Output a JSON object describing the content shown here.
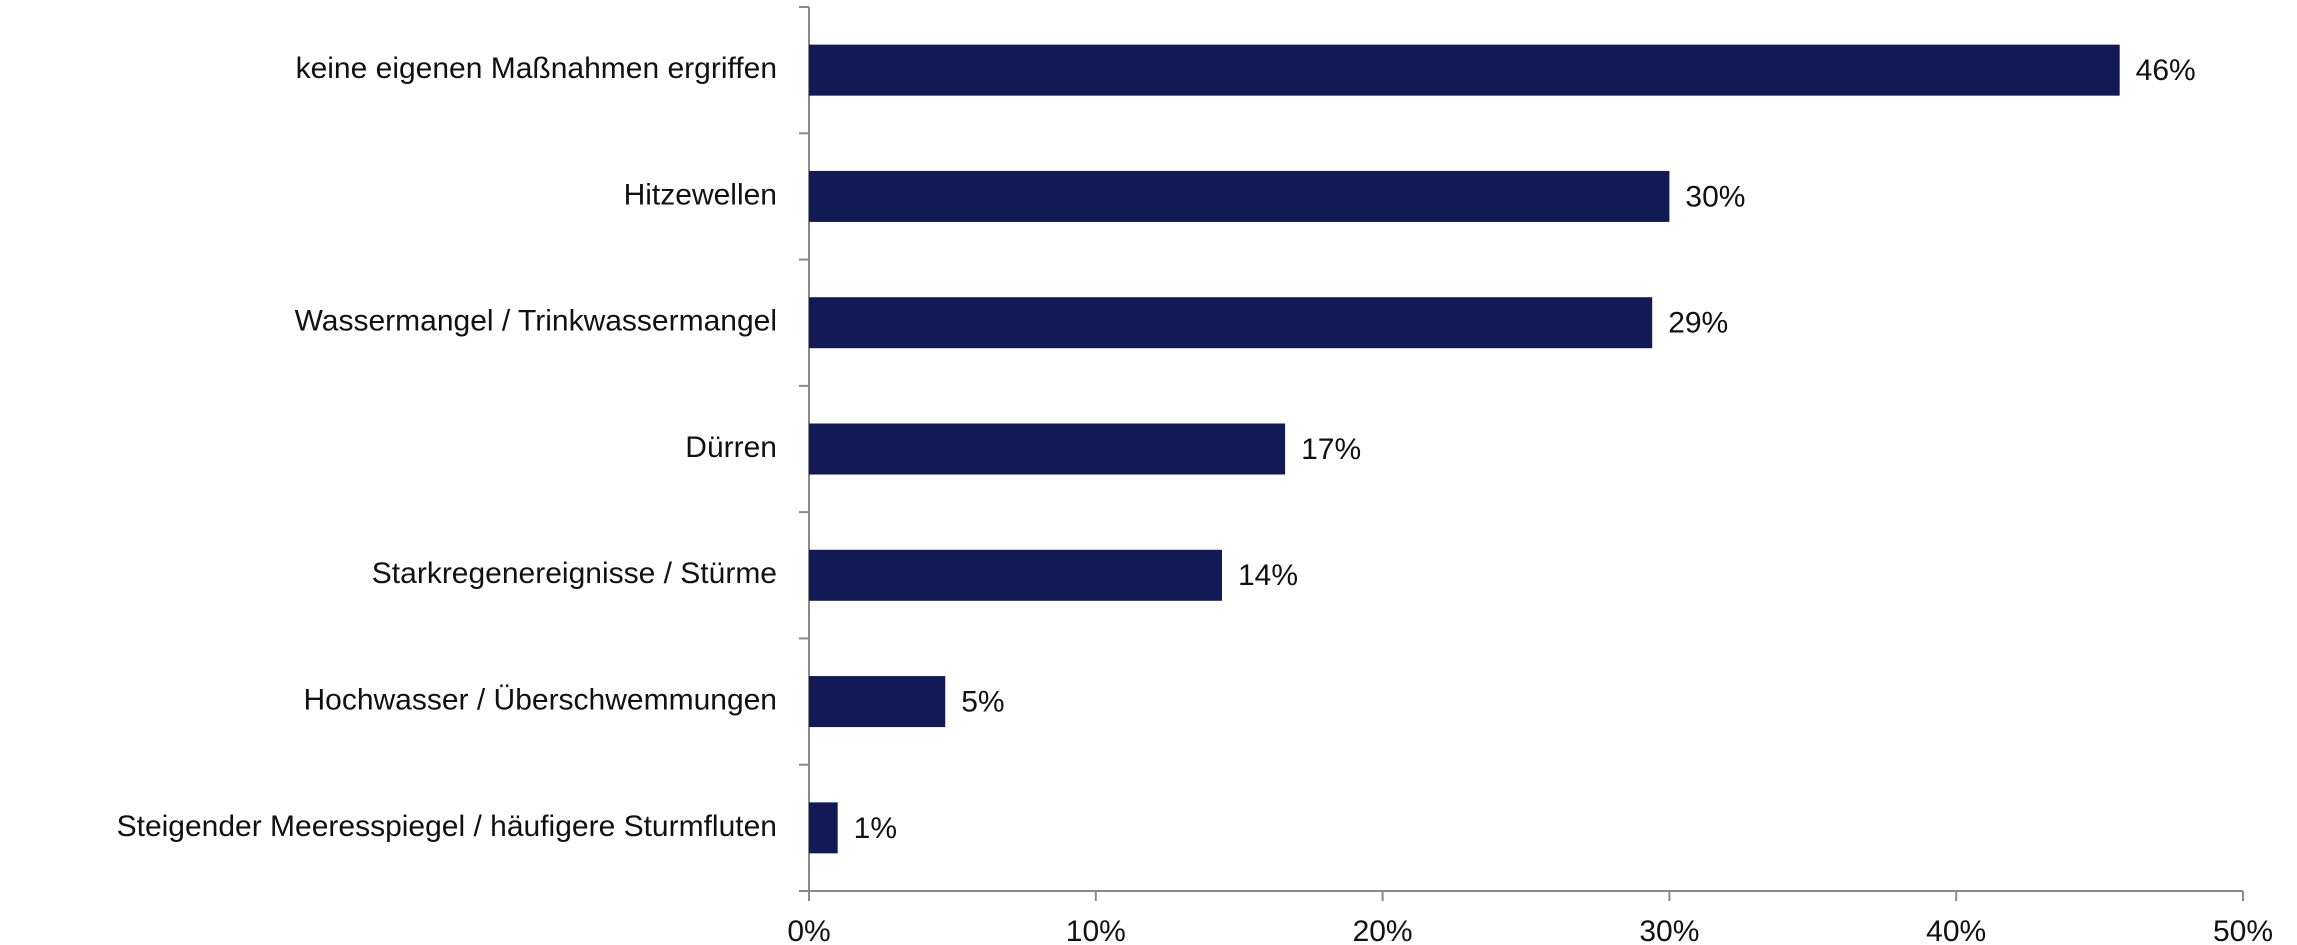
{
  "chart_data": {
    "type": "bar",
    "orientation": "horizontal",
    "categories": [
      "keine eigenen Maßnahmen ergriffen",
      "Hitzewellen",
      "Wassermangel / Trinkwassermangel",
      "Dürren",
      "Starkregenereignisse / Stürme",
      "Hochwasser / Überschwemmungen",
      "Steigender Meeresspiegel / häufigere Sturmfluten"
    ],
    "values": [
      45.7,
      30,
      29.4,
      16.6,
      14.4,
      4.75,
      1.0
    ],
    "value_labels": [
      "46%",
      "30%",
      "29%",
      "17%",
      "14%",
      "5%",
      "1%"
    ],
    "color": "#111a54",
    "xlim": [
      0,
      50
    ],
    "xticks": [
      {
        "value": 0,
        "label": "0%"
      },
      {
        "value": 10,
        "label": "10%"
      },
      {
        "value": 20,
        "label": "20%"
      },
      {
        "value": 30,
        "label": "30%"
      },
      {
        "value": 40,
        "label": "40%"
      },
      {
        "value": 50,
        "label": "50%"
      }
    ],
    "grid": false
  }
}
